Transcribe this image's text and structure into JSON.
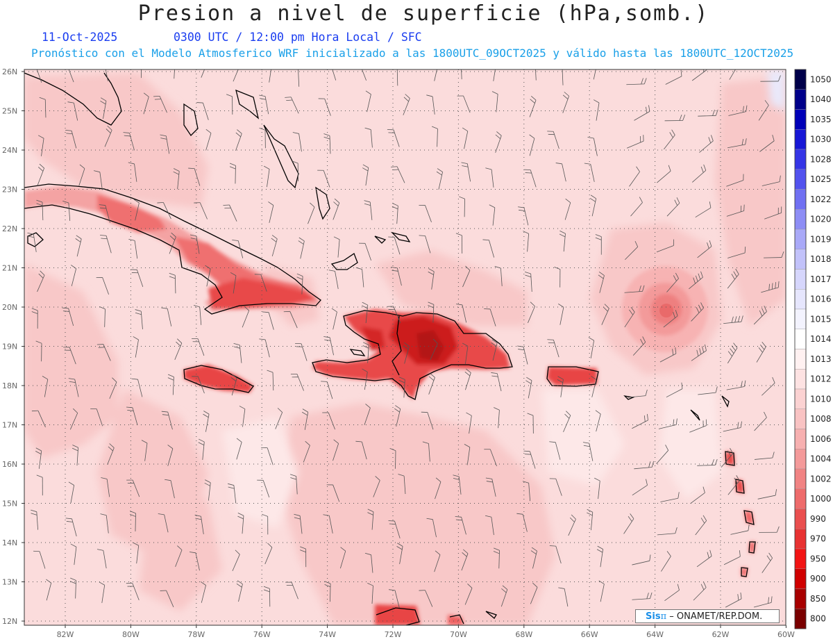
{
  "header": {
    "title": "Presion a nivel de superficie (hPa,somb.)",
    "date": "11-Oct-2025",
    "valid_time": "0300 UTC / 12:00 pm Hora Local / SFC",
    "model_info": "Pronóstico con el Modelo Atmosferico WRF inicializado a las 1800UTC_09OCT2025 y válido hasta las  1800UTC_12OCT2025"
  },
  "map": {
    "lat_labels": [
      "26N",
      "25N",
      "24N",
      "23N",
      "22N",
      "21N",
      "20N",
      "19N",
      "18N",
      "17N",
      "16N",
      "15N",
      "14N",
      "13N",
      "12N"
    ],
    "lon_labels": [
      "82W",
      "80W",
      "78W",
      "76W",
      "74W",
      "72W",
      "70W",
      "68W",
      "66W",
      "64W",
      "62W",
      "60W"
    ],
    "grid": true,
    "fill_colors": {
      "background": "#fbdcdc",
      "mid": "#f8c6c6",
      "land": "#e83a3a",
      "land_core": "#c51212",
      "low_center": "#ef8e8e"
    }
  },
  "colorbar": {
    "levels": [
      "1050",
      "1040",
      "1035",
      "1030",
      "1028",
      "1025",
      "1022",
      "1020",
      "1019",
      "1018",
      "1017",
      "1016",
      "1015",
      "1014",
      "1013",
      "1012",
      "1010",
      "1008",
      "1006",
      "1004",
      "1002",
      "1000",
      "990",
      "970",
      "950",
      "900",
      "850",
      "800"
    ],
    "colors": [
      "#00004a",
      "#00008a",
      "#0000b8",
      "#1717d6",
      "#3535e6",
      "#5252ee",
      "#7070f2",
      "#8d8df5",
      "#a9a9f8",
      "#c2c2fa",
      "#d6d6fc",
      "#e6e6fd",
      "#f3f3fe",
      "#ffffff",
      "#fff1f1",
      "#fde2e2",
      "#fbd2d2",
      "#f9c3c3",
      "#f7b0b0",
      "#f49a9a",
      "#f18383",
      "#ee6b6b",
      "#ea4f4f",
      "#e83232",
      "#f21414",
      "#d00000",
      "#a80000",
      "#7a0000"
    ]
  },
  "credit": {
    "brand": "Sis",
    "brand_symbol": "π",
    "text": " – ONAMET/REP.DOM."
  }
}
